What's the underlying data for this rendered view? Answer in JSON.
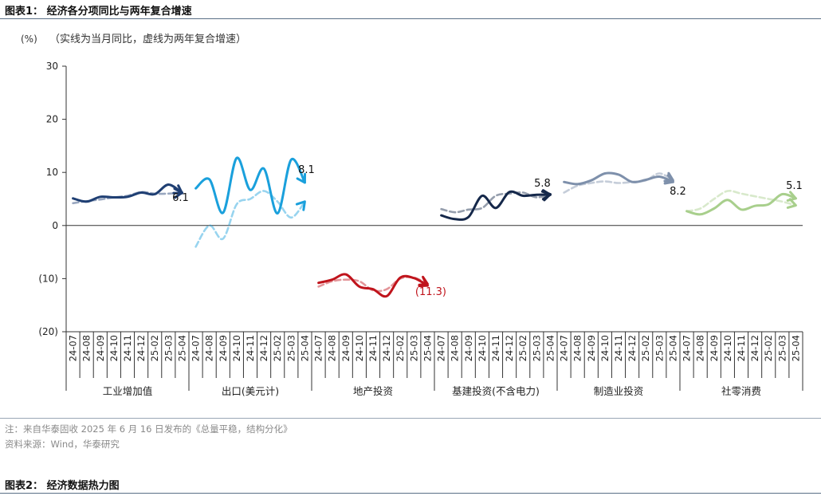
{
  "figure1": {
    "title": "图表1：  经济各分项同比与两年复合增速",
    "unit_label": "(%)",
    "subtitle": "（实线为当月同比，虚线为两年复合增速）",
    "note": "注：来自华泰固收 2025 年 6 月 16 日发布的《总量平稳，结构分化》",
    "source": "资料来源：Wind，华泰研究"
  },
  "figure2": {
    "title": "图表2：  经济数据热力图"
  },
  "chart_data": {
    "type": "line",
    "y_ticks": [
      "30",
      "20",
      "10",
      "0",
      "(10)",
      "(20)"
    ],
    "y_tick_values": [
      30,
      20,
      10,
      0,
      -10,
      -20
    ],
    "ylim": [
      -20,
      30
    ],
    "months": [
      "24-07",
      "24-08",
      "24-09",
      "24-10",
      "24-11",
      "24-12",
      "25-02",
      "25-03",
      "25-04"
    ],
    "groups": [
      {
        "name": "工业增加值",
        "color": "#1f3f73",
        "solid": [
          5.1,
          4.5,
          5.4,
          5.3,
          5.4,
          6.2,
          5.9,
          7.7,
          6.1
        ],
        "dashed": [
          4.2,
          4.6,
          4.9,
          5.3,
          5.6,
          6.3,
          6.0,
          6.0,
          6.2
        ],
        "label": "6.1",
        "label_color": "#111111"
      },
      {
        "name": "出口(美元计)",
        "color": "#1aa0dc",
        "solid": [
          7.0,
          8.7,
          2.4,
          12.7,
          6.7,
          10.7,
          2.3,
          12.4,
          8.1
        ],
        "dashed": [
          -4.0,
          0.0,
          -2.5,
          4.0,
          5.0,
          6.5,
          4.5,
          1.5,
          4.5
        ],
        "label": "8.1",
        "label_color": "#111111"
      },
      {
        "name": "地产投资",
        "color": "#c0141c",
        "solid": [
          -10.8,
          -10.2,
          -9.2,
          -11.5,
          -12.0,
          -13.3,
          -9.8,
          -9.9,
          -11.3
        ],
        "dashed": [
          -11.5,
          -10.5,
          -10.2,
          -10.5,
          -12.2,
          -12.0,
          -10.0,
          -9.8,
          -11.0
        ],
        "label": "(11.3)",
        "label_color": "#c0141c"
      },
      {
        "name": "基建投资(不含电力)",
        "color": "#15284a",
        "solid": [
          1.9,
          1.2,
          1.6,
          5.6,
          3.3,
          6.3,
          5.6,
          5.8,
          5.8
        ],
        "dashed": [
          3.1,
          2.5,
          3.0,
          3.3,
          5.6,
          6.0,
          6.2,
          5.3,
          5.9
        ],
        "label": "5.8",
        "label_color": "#111111"
      },
      {
        "name": "制造业投资",
        "color": "#7e90ab",
        "solid": [
          8.2,
          7.8,
          8.5,
          9.8,
          9.6,
          8.2,
          8.6,
          9.2,
          8.2
        ],
        "dashed": [
          6.2,
          7.5,
          8.0,
          8.3,
          8.0,
          8.2,
          8.5,
          9.8,
          8.5
        ],
        "label": "8.2",
        "label_color": "#111111"
      },
      {
        "name": "社零消费",
        "color": "#a8cf8c",
        "solid": [
          2.7,
          2.1,
          3.2,
          4.8,
          3.0,
          3.7,
          4.0,
          5.9,
          5.1
        ],
        "dashed": [
          2.7,
          3.2,
          5.0,
          6.5,
          6.0,
          5.5,
          5.0,
          4.5,
          3.8
        ],
        "label": "5.1",
        "label_color": "#111111"
      }
    ],
    "grid": false,
    "legend": "none"
  }
}
